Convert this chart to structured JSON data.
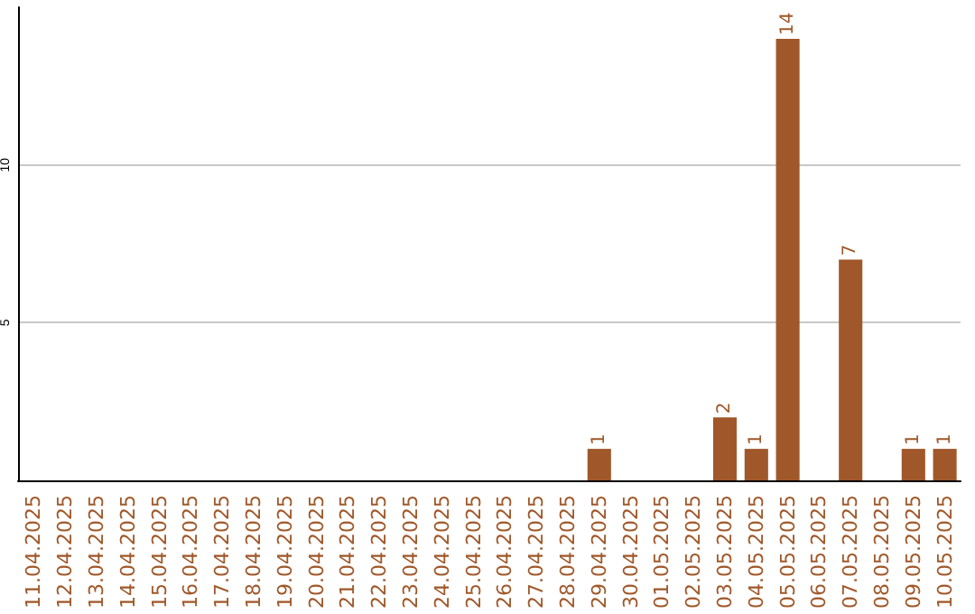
{
  "chart_data": {
    "type": "bar",
    "categories": [
      "11.04.2025",
      "12.04.2025",
      "13.04.2025",
      "14.04.2025",
      "15.04.2025",
      "16.04.2025",
      "17.04.2025",
      "18.04.2025",
      "19.04.2025",
      "20.04.2025",
      "21.04.2025",
      "22.04.2025",
      "23.04.2025",
      "24.04.2025",
      "25.04.2025",
      "26.04.2025",
      "27.04.2025",
      "28.04.2025",
      "29.04.2025",
      "30.04.2025",
      "01.05.2025",
      "02.05.2025",
      "03.05.2025",
      "04.05.2025",
      "05.05.2025",
      "06.05.2025",
      "07.05.2025",
      "08.05.2025",
      "09.05.2025",
      "10.05.2025"
    ],
    "values": [
      0,
      0,
      0,
      0,
      0,
      0,
      0,
      0,
      0,
      0,
      0,
      0,
      0,
      0,
      0,
      0,
      0,
      0,
      1,
      0,
      0,
      0,
      2,
      1,
      14,
      0,
      7,
      0,
      1,
      1
    ],
    "value_labels": [
      null,
      null,
      null,
      null,
      null,
      null,
      null,
      null,
      null,
      null,
      null,
      null,
      null,
      null,
      null,
      null,
      null,
      null,
      "1",
      null,
      null,
      null,
      "2",
      "1",
      "14",
      null,
      "7",
      null,
      "1",
      "1"
    ],
    "color": "#a0582a",
    "ylim": [
      0,
      15
    ],
    "yticks": [
      5,
      10
    ],
    "grid": "y"
  }
}
